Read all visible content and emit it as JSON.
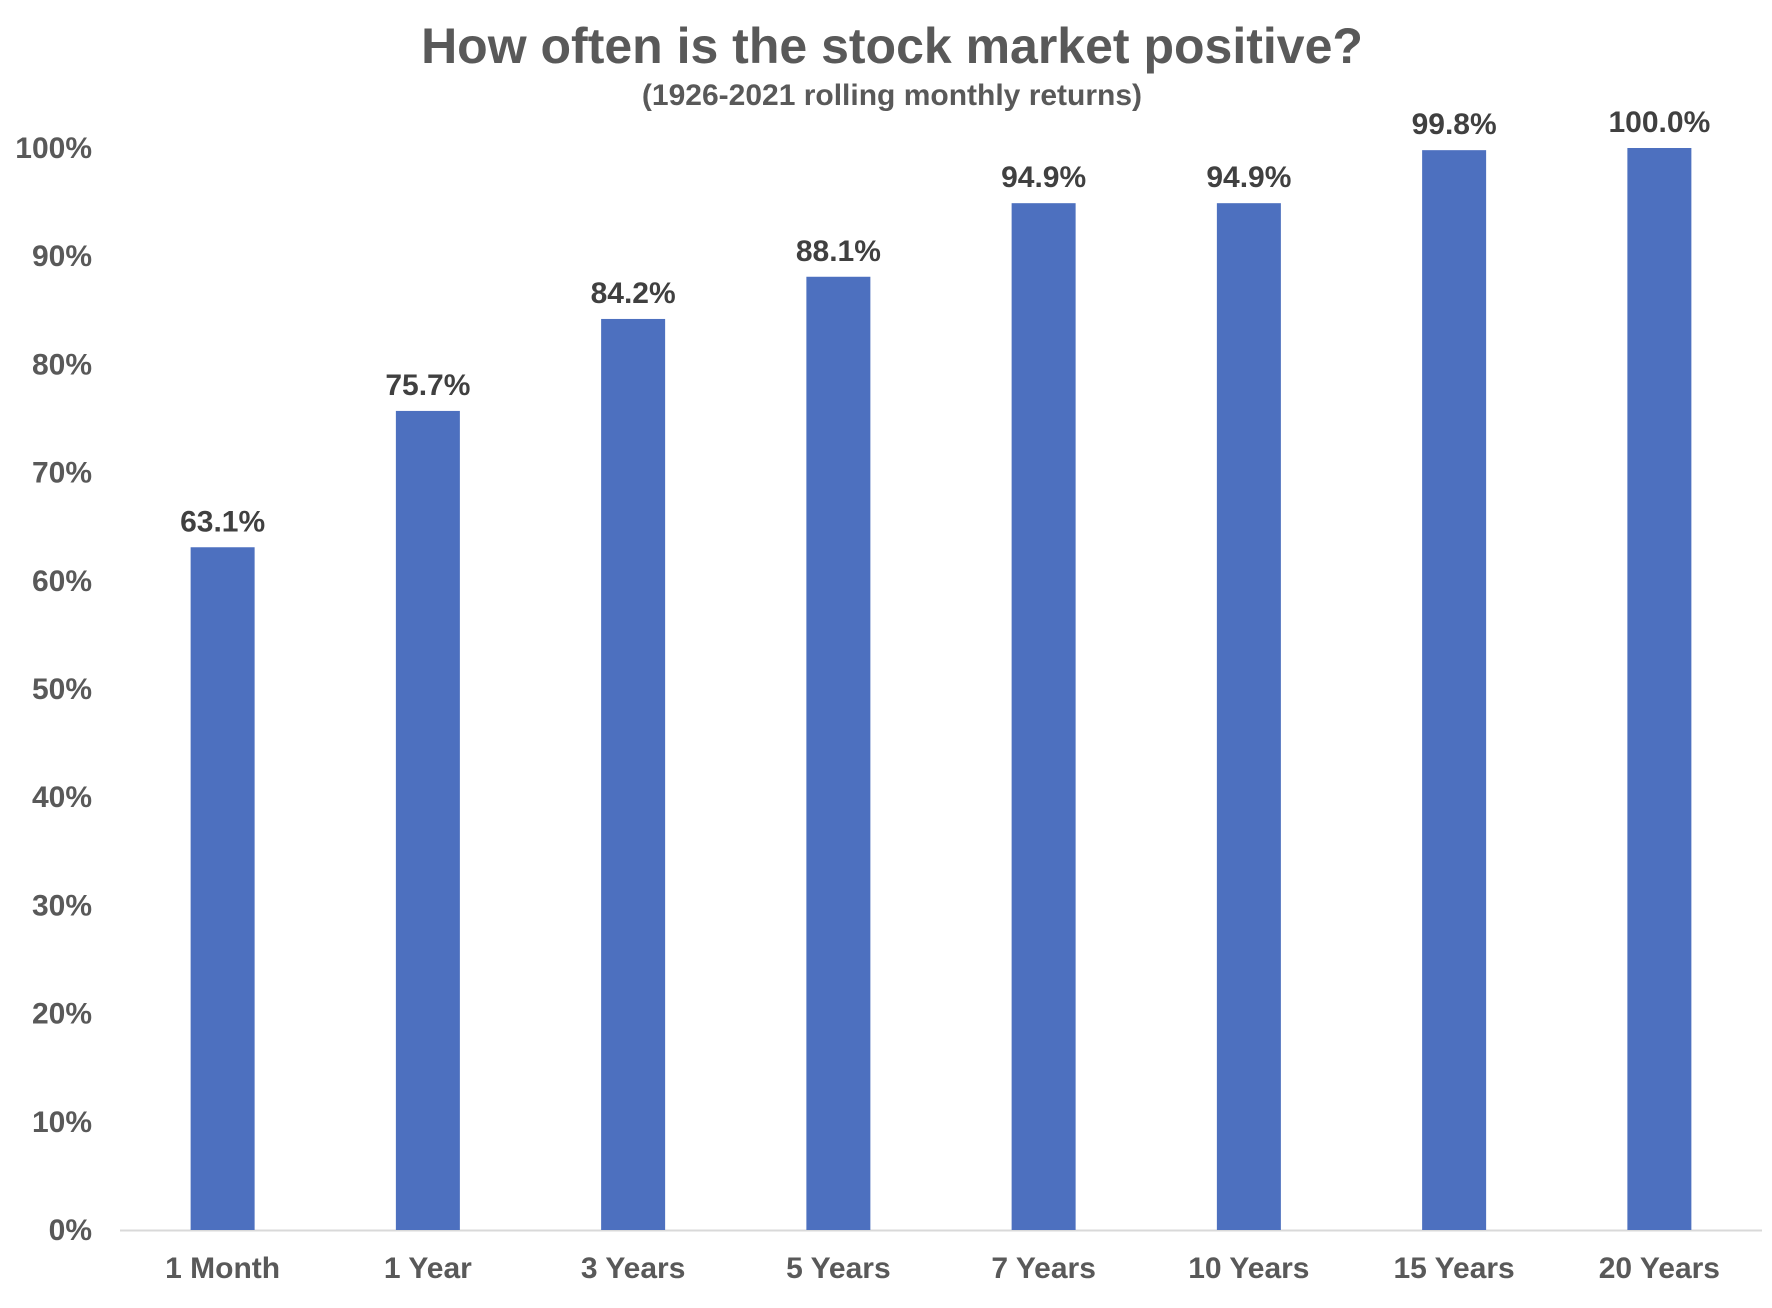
{
  "chart_data": {
    "type": "bar",
    "title": "How often is the stock market positive?",
    "subtitle": "(1926-2021 rolling monthly returns)",
    "categories": [
      "1 Month",
      "1 Year",
      "3 Years",
      "5 Years",
      "7 Years",
      "10 Years",
      "15 Years",
      "20 Years"
    ],
    "values": [
      63.1,
      75.7,
      84.2,
      88.1,
      94.9,
      94.9,
      99.8,
      100.0
    ],
    "data_labels": [
      "63.1%",
      "75.7%",
      "84.2%",
      "88.1%",
      "94.9%",
      "94.9%",
      "99.8%",
      "100.0%"
    ],
    "y_ticks": [
      0,
      10,
      20,
      30,
      40,
      50,
      60,
      70,
      80,
      90,
      100
    ],
    "y_tick_labels": [
      "0%",
      "10%",
      "20%",
      "30%",
      "40%",
      "50%",
      "60%",
      "70%",
      "80%",
      "90%",
      "100%"
    ],
    "ylim": [
      0,
      100
    ],
    "grid": false,
    "legend": "none",
    "colors": {
      "bar": "#4d70bf",
      "axis": "#d9d9d9",
      "text": "#595959",
      "data_label": "#404040"
    }
  }
}
